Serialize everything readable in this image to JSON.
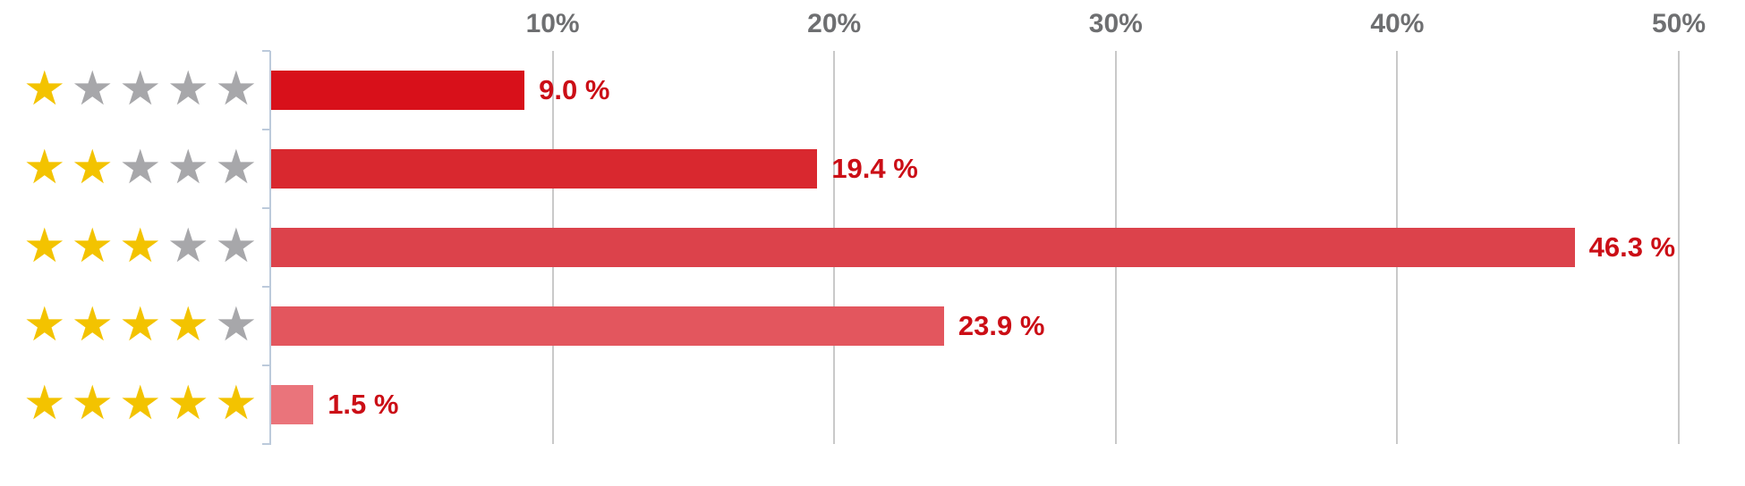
{
  "chart_data": {
    "type": "bar",
    "orientation": "horizontal",
    "title": "",
    "xlabel": "",
    "ylabel": "",
    "categories": [
      "1 star",
      "2 stars",
      "3 stars",
      "4 stars",
      "5 stars"
    ],
    "star_counts": [
      1,
      2,
      3,
      4,
      5
    ],
    "max_stars": 5,
    "values": [
      9.0,
      19.4,
      46.3,
      23.9,
      1.5
    ],
    "value_labels": [
      "9.0 %",
      "19.4 %",
      "46.3 %",
      "23.9 %",
      "1.5 %"
    ],
    "bar_colors": [
      "#d8101a",
      "#d9282f",
      "#dc424b",
      "#e3565e",
      "#ea747b"
    ],
    "xlim": [
      0,
      50
    ],
    "x_ticks": [
      10,
      20,
      30,
      40,
      50
    ],
    "x_tick_labels": [
      "10%",
      "20%",
      "30%",
      "40%",
      "50%"
    ],
    "grid": true,
    "legend": false
  },
  "colors": {
    "background": "#ffffff",
    "value_label": "#cb0e16",
    "tick_label": "#6e6f71",
    "gridline": "#c9c9c9",
    "axis": "#bccadb",
    "star_filled": "#f3c300",
    "star_empty": "#a7a7aa"
  },
  "icons": {
    "star": "★"
  }
}
